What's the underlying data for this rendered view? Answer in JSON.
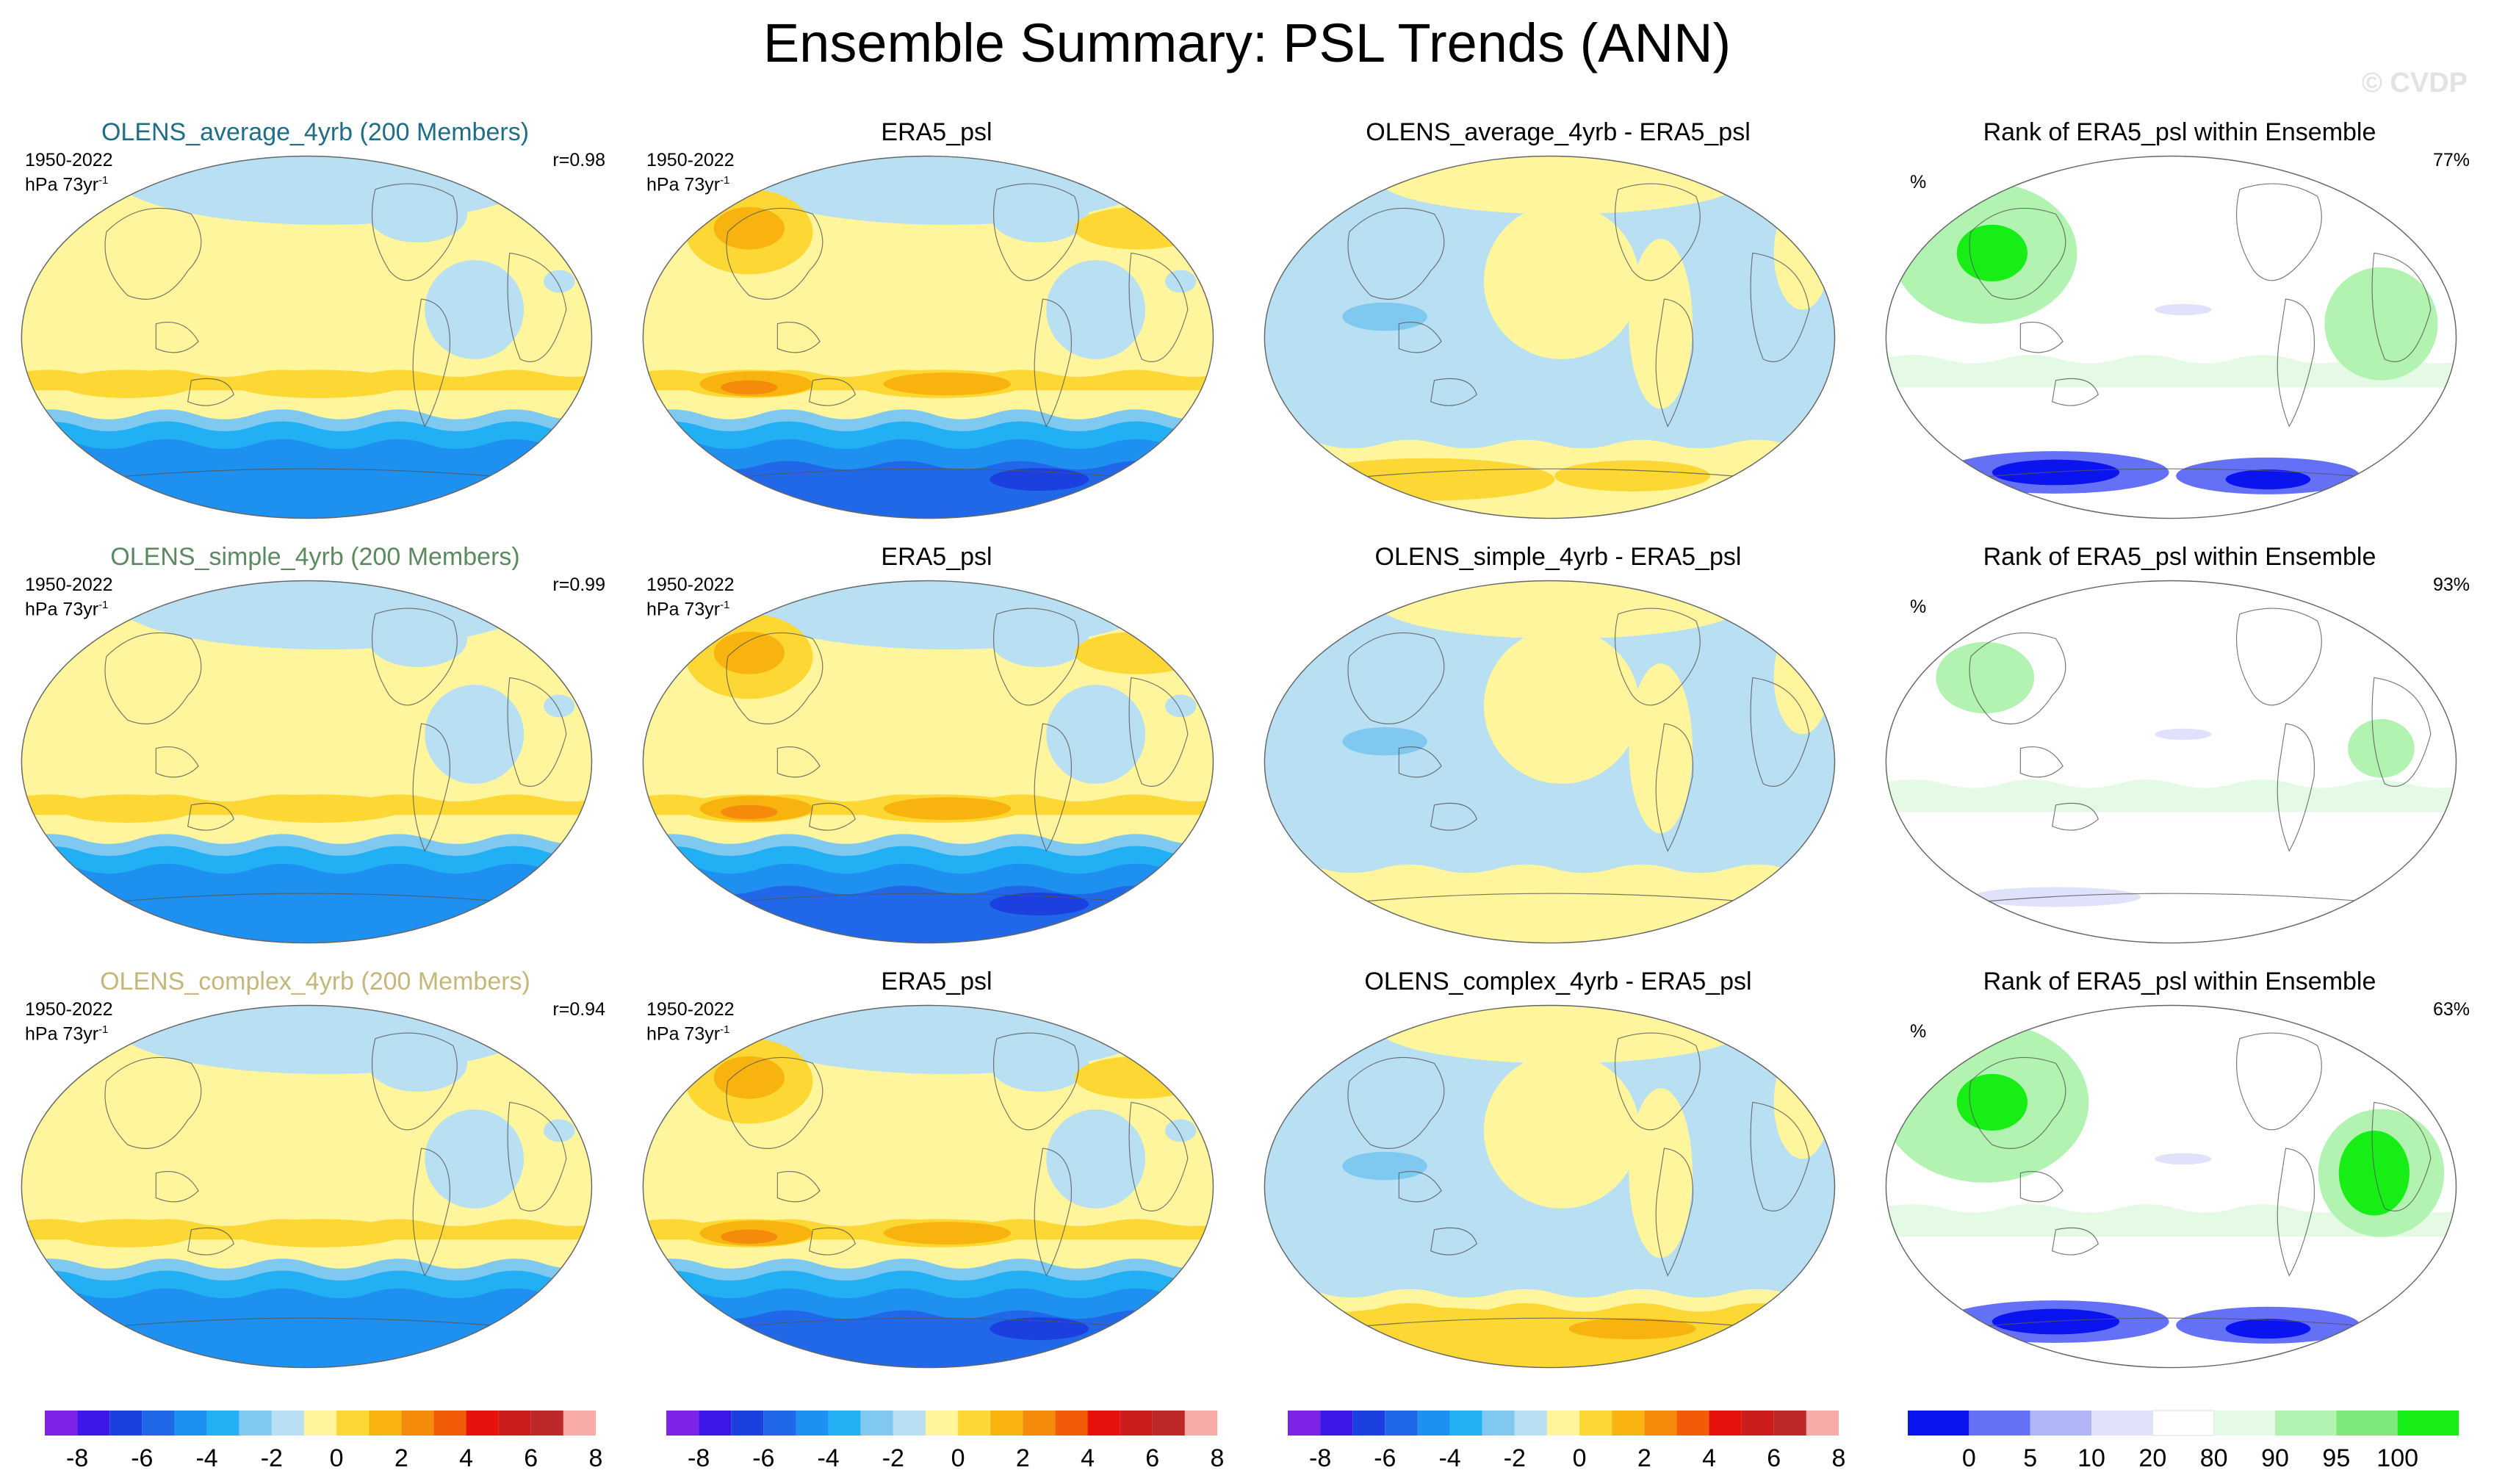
{
  "title": "Ensemble Summary: PSL Trends (ANN)",
  "watermark": "© CVDP",
  "colors": {
    "trend_levels": [
      "#7e22e8",
      "#3c17e8",
      "#1c3fe0",
      "#2168e8",
      "#1e90f0",
      "#22b0f5",
      "#7fc8f0",
      "#b8dff2",
      "#fff59c",
      "#fdd835",
      "#f9b30f",
      "#f58b0a",
      "#f25c08",
      "#e8120c",
      "#cc1d1d",
      "#bd2828",
      "#f7aaa8"
    ],
    "rank_levels": [
      "#0a14ee",
      "#6470f5",
      "#b0b5f8",
      "#e0e2fb",
      "#ffffff",
      "#e4fae4",
      "#b2f3b2",
      "#7de97d",
      "#16ee16"
    ]
  },
  "rows": [
    {
      "panels": [
        {
          "kind": "trend",
          "title": "OLENS_average_4yrb (200 Members)",
          "title_color": "#1f6e86",
          "period": "1950-2022",
          "units_base": "hPa 73yr",
          "units_sup": "-1",
          "r": "r=0.98"
        },
        {
          "kind": "trend",
          "title": "ERA5_psl",
          "title_color": "#000000",
          "period": "1950-2022",
          "units_base": "hPa 73yr",
          "units_sup": "-1",
          "strong": true
        },
        {
          "kind": "diff",
          "title": "OLENS_average_4yrb - ERA5_psl",
          "title_color": "#000000"
        },
        {
          "kind": "rank",
          "title": "Rank of ERA5_psl within Ensemble",
          "title_color": "#000000",
          "unit": "%",
          "value": "77%"
        }
      ]
    },
    {
      "panels": [
        {
          "kind": "trend",
          "title": "OLENS_simple_4yrb (200 Members)",
          "title_color": "#5b8a60",
          "period": "1950-2022",
          "units_base": "hPa 73yr",
          "units_sup": "-1",
          "r": "r=0.99"
        },
        {
          "kind": "trend",
          "title": "ERA5_psl",
          "title_color": "#000000",
          "period": "1950-2022",
          "units_base": "hPa 73yr",
          "units_sup": "-1",
          "strong": true
        },
        {
          "kind": "diff",
          "title": "OLENS_simple_4yrb - ERA5_psl",
          "title_color": "#000000"
        },
        {
          "kind": "rank",
          "title": "Rank of ERA5_psl within Ensemble",
          "title_color": "#000000",
          "unit": "%",
          "value": "93%"
        }
      ]
    },
    {
      "panels": [
        {
          "kind": "trend",
          "title": "OLENS_complex_4yrb (200 Members)",
          "title_color": "#c4b77a",
          "period": "1950-2022",
          "units_base": "hPa 73yr",
          "units_sup": "-1",
          "r": "r=0.94"
        },
        {
          "kind": "trend",
          "title": "ERA5_psl",
          "title_color": "#000000",
          "period": "1950-2022",
          "units_base": "hPa 73yr",
          "units_sup": "-1",
          "strong": true
        },
        {
          "kind": "diff",
          "title": "OLENS_complex_4yrb - ERA5_psl",
          "title_color": "#000000"
        },
        {
          "kind": "rank",
          "title": "Rank of ERA5_psl within Ensemble",
          "title_color": "#000000",
          "unit": "%",
          "value": "63%"
        }
      ]
    }
  ],
  "colorbars": [
    {
      "type": "trend",
      "ticks": [
        "-8",
        "-6",
        "-4",
        "-2",
        "0",
        "2",
        "4",
        "6",
        "8"
      ]
    },
    {
      "type": "trend",
      "ticks": [
        "-8",
        "-6",
        "-4",
        "-2",
        "0",
        "2",
        "4",
        "6",
        "8"
      ]
    },
    {
      "type": "trend",
      "ticks": [
        "-8",
        "-6",
        "-4",
        "-2",
        "0",
        "2",
        "4",
        "6",
        "8"
      ]
    },
    {
      "type": "rank",
      "ticks": [
        "0",
        "5",
        "10",
        "20",
        "80",
        "90",
        "95",
        "100"
      ]
    }
  ],
  "chart_data": {
    "type": "heatmap",
    "title": "Ensemble Summary: PSL Trends (ANN)",
    "period": "1950-2022",
    "units": "hPa 73yr-1",
    "projection": "global map",
    "trend_colorbar_levels": [
      -8,
      -7,
      -6,
      -5,
      -4,
      -3,
      -2,
      -1,
      0,
      1,
      2,
      3,
      4,
      5,
      6,
      7,
      8
    ],
    "trend_colorbar_ticks": [
      -8,
      -6,
      -4,
      -2,
      0,
      2,
      4,
      6,
      8
    ],
    "rank_colorbar_levels": [
      0,
      5,
      10,
      20,
      80,
      90,
      95,
      100
    ],
    "rank_colorbar_unit": "%",
    "pattern_correlations": [
      {
        "model": "OLENS_average_4yrb",
        "r": 0.98
      },
      {
        "model": "OLENS_simple_4yrb",
        "r": 0.99
      },
      {
        "model": "OLENS_complex_4yrb",
        "r": 0.94
      }
    ],
    "ensemble_size": 200,
    "rank_area_percent": [
      {
        "model": "OLENS_average_4yrb",
        "value": 77
      },
      {
        "model": "OLENS_simple_4yrb",
        "value": 93
      },
      {
        "model": "OLENS_complex_4yrb",
        "value": 63
      }
    ],
    "panel_rows": [
      [
        "OLENS_average_4yrb (200 Members)",
        "ERA5_psl",
        "OLENS_average_4yrb - ERA5_psl",
        "Rank of ERA5_psl within Ensemble"
      ],
      [
        "OLENS_simple_4yrb (200 Members)",
        "ERA5_psl",
        "OLENS_simple_4yrb - ERA5_psl",
        "Rank of ERA5_psl within Ensemble"
      ],
      [
        "OLENS_complex_4yrb (200 Members)",
        "ERA5_psl",
        "OLENS_complex_4yrb - ERA5_psl",
        "Rank of ERA5_psl within Ensemble"
      ]
    ]
  }
}
